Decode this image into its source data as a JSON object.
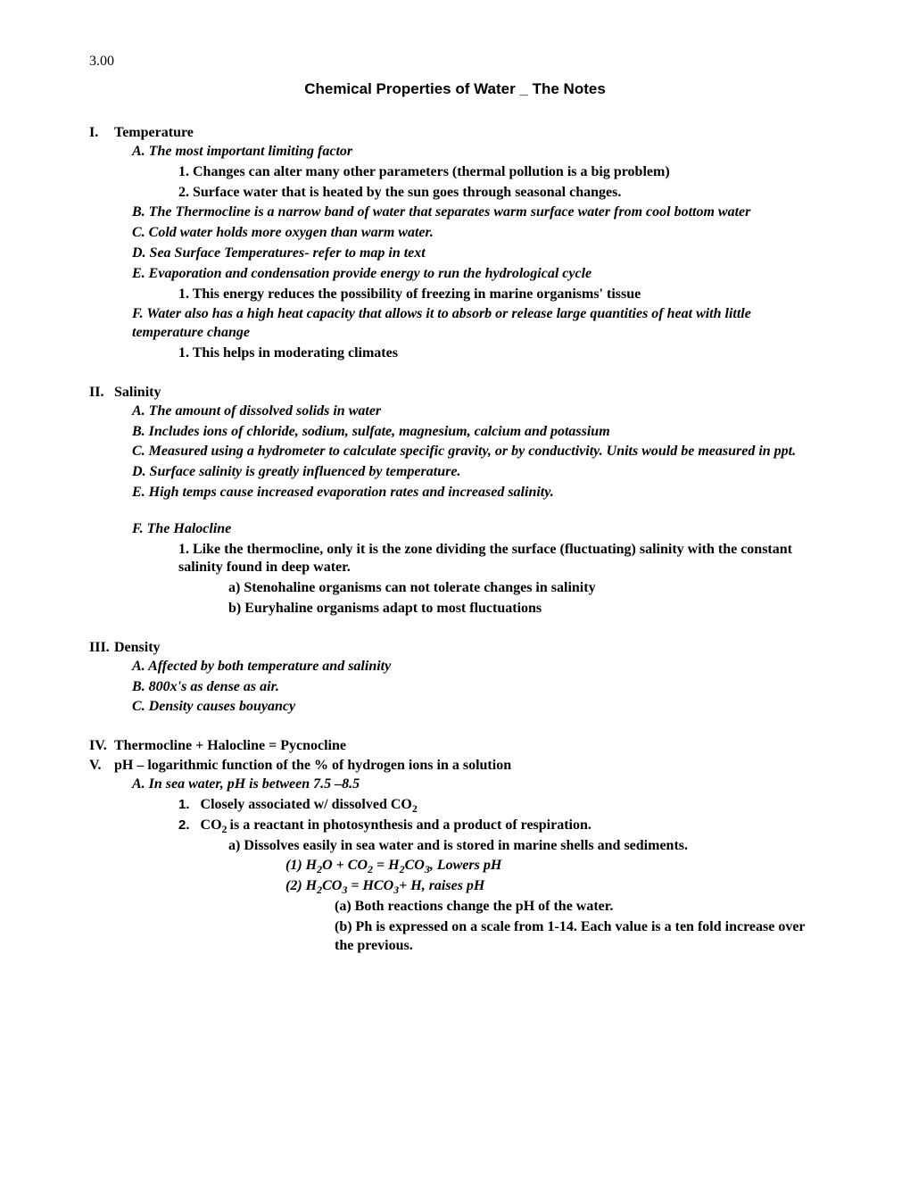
{
  "page_number": "3.00",
  "title": "Chemical Properties of Water _ The Notes",
  "sections": {
    "I": {
      "label": "I.",
      "title": "Temperature",
      "A": "A.   The most important limiting factor",
      "A1": "1.   Changes can alter many other parameters (thermal pollution is a big problem)",
      "A2": "2.   Surface water that is heated by the sun goes through seasonal changes.",
      "B": "B.   The Thermocline is a narrow band of water that separates warm  surface water from cool bottom water",
      "C": "C.   Cold water holds more oxygen than warm water.",
      "D": "D.   Sea Surface Temperatures- refer to map in text",
      "E": "E.   Evaporation and condensation provide energy to run the hydrological cycle",
      "E1": "1.   This energy reduces the possibility of freezing in marine organisms' tissue",
      "F": "F.   Water also has a high heat capacity that allows it to absorb or release large quantities of heat with little temperature change",
      "F1": "1.   This helps in moderating climates"
    },
    "II": {
      "label": "II.",
      "title": "Salinity",
      "A": "A.   The amount of dissolved solids in water",
      "B": "B.   Includes ions of chloride, sodium, sulfate, magnesium, calcium and potassium",
      "C": "C.   Measured using a hydrometer to calculate specific gravity, or by conductivity. Units would be measured in ppt.",
      "D": "D.   Surface salinity is greatly influenced by temperature.",
      "E": "E.   High temps cause increased evaporation rates and increased salinity.",
      "F": "F.   The Halocline",
      "F1": "1.   Like the thermocline, only it is the zone dividing the surface (fluctuating) salinity with the constant salinity found in deep water.",
      "F1a": "a)   Stenohaline organisms can not tolerate changes in salinity",
      "F1b": "b)   Euryhaline organisms adapt to most fluctuations"
    },
    "III": {
      "label": "III.",
      "title": "Density",
      "A": "A.   Affected by both temperature and salinity",
      "B": "B.   800x's as dense as air.",
      "C": "C.   Density causes bouyancy"
    },
    "IV": {
      "label": "IV.",
      "title": "Thermocline + Halocline = Pycnocline"
    },
    "V": {
      "label": "V.",
      "title": "pH – logarithmic function of the % of hydrogen ions in a solution",
      "A": "A.   In sea water, pH is between 7.5 –8.5",
      "A1_num": "1.",
      "A1_text": "Closely associated w/ dissolved CO",
      "A2_num": "2.",
      "A2_text_a": "CO",
      "A2_text_b": "is a reactant in photosynthesis and a product of respiration.",
      "A2a": "a)   Dissolves easily in sea water and is stored in marine shells and sediments.",
      "A2a1_prefix": "(1)  H",
      "A2a1_mid1": "O + CO",
      "A2a1_mid2": " = H",
      "A2a1_mid3": "CO",
      "A2a1_suffix": ", Lowers pH",
      "A2a2_prefix": "(2)  H",
      "A2a2_mid1": "CO",
      "A2a2_mid2": " = HCO",
      "A2a2_suffix": "+ H, raises pH",
      "A2a2a": "(a) Both reactions change the pH of the water.",
      "A2a2b": "(b) Ph is expressed on a scale from 1-14. Each value is a ten fold increase over the previous."
    }
  },
  "colors": {
    "text": "#000000",
    "background": "#ffffff"
  },
  "fonts": {
    "body": "Times New Roman",
    "title": "Arial",
    "body_size": 16,
    "title_size": 17
  }
}
